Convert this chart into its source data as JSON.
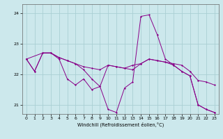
{
  "xlabel": "Windchill (Refroidissement éolien,°C)",
  "background_color": "#cce8ec",
  "grid_color": "#aacfd4",
  "line_color": "#880088",
  "xlim": [
    -0.5,
    23.5
  ],
  "ylim": [
    20.7,
    24.3
  ],
  "yticks": [
    21,
    22,
    23,
    24
  ],
  "xticks": [
    0,
    1,
    2,
    3,
    4,
    5,
    6,
    7,
    8,
    9,
    10,
    11,
    12,
    13,
    14,
    15,
    16,
    17,
    18,
    19,
    20,
    21,
    22,
    23
  ],
  "series": [
    {
      "x": [
        0,
        1,
        2,
        3,
        4,
        5,
        6,
        7,
        8,
        9,
        10,
        11,
        12,
        13,
        14,
        15,
        16,
        17,
        18,
        19,
        20,
        21,
        22,
        23
      ],
      "y": [
        22.5,
        22.1,
        22.7,
        22.7,
        22.5,
        21.85,
        21.65,
        21.85,
        21.5,
        21.6,
        20.85,
        20.75,
        21.55,
        21.75,
        23.9,
        23.95,
        23.3,
        22.5,
        22.3,
        22.1,
        21.95,
        21.0,
        20.85,
        20.75
      ]
    },
    {
      "x": [
        0,
        2,
        3,
        4,
        5,
        6,
        7,
        8,
        9,
        10,
        11,
        12,
        13,
        14,
        15,
        16,
        17,
        18,
        19,
        20,
        21,
        22,
        23
      ],
      "y": [
        22.5,
        22.7,
        22.7,
        22.55,
        22.45,
        22.35,
        22.25,
        22.2,
        22.15,
        22.3,
        22.25,
        22.2,
        22.15,
        22.35,
        22.5,
        22.45,
        22.4,
        22.35,
        22.3,
        22.1,
        21.8,
        21.75,
        21.65
      ]
    },
    {
      "x": [
        0,
        1,
        2,
        3,
        4,
        5,
        6,
        7,
        8,
        9,
        10,
        11,
        12,
        13,
        14,
        15,
        16,
        17,
        18,
        19,
        20,
        21,
        22,
        23
      ],
      "y": [
        22.5,
        22.1,
        22.7,
        22.7,
        22.55,
        22.45,
        22.35,
        22.15,
        21.85,
        21.6,
        22.3,
        22.25,
        22.2,
        22.3,
        22.35,
        22.5,
        22.45,
        22.4,
        22.3,
        22.1,
        21.95,
        21.0,
        20.85,
        20.75
      ]
    }
  ]
}
